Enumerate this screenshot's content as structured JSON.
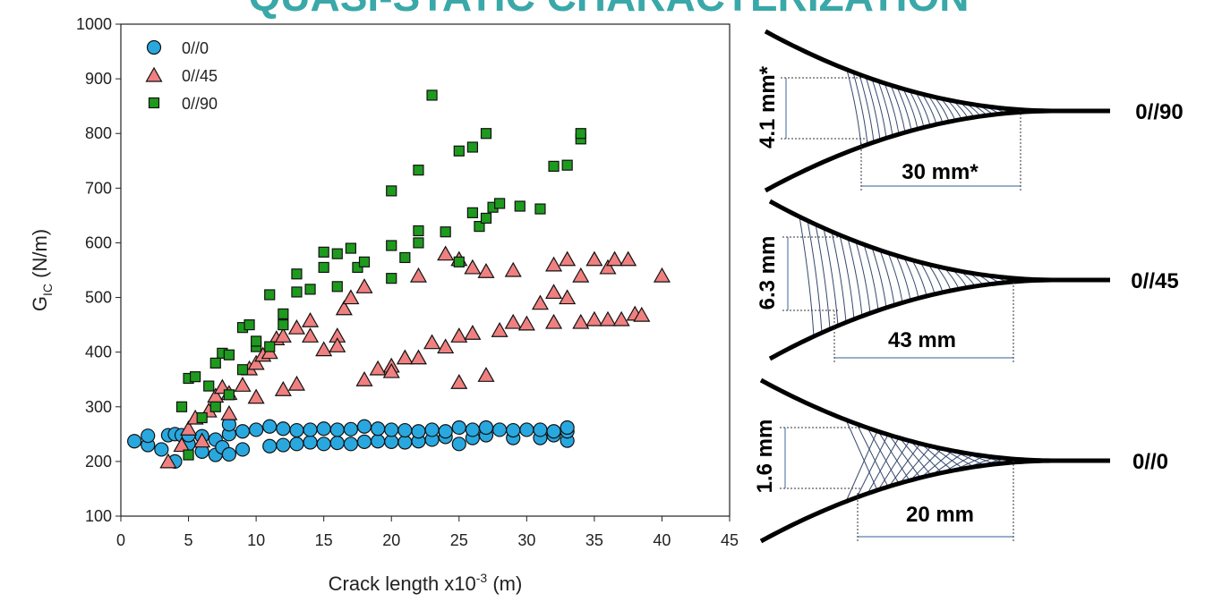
{
  "header": {
    "title": "QUASI-STATIC CHARACTERIZATION"
  },
  "chart_data": {
    "type": "scatter",
    "xlabel": [
      "Crack length x10",
      "-3",
      " (m)"
    ],
    "ylabel": [
      "G",
      "IC",
      " (N/m)"
    ],
    "xlim": [
      0,
      45
    ],
    "xticks": [
      0,
      5,
      10,
      15,
      20,
      25,
      30,
      35,
      40,
      45
    ],
    "ylim": [
      100,
      1000
    ],
    "yticks": [
      100,
      200,
      300,
      400,
      500,
      600,
      700,
      800,
      900,
      1000
    ],
    "legend": "top-left",
    "series": [
      {
        "name": "0//0",
        "color": "#29a8e0",
        "marker": "circle",
        "x": [
          1,
          2,
          2,
          3,
          3.5,
          4,
          4,
          4.5,
          5,
          5,
          6,
          6,
          7,
          7,
          7.5,
          8,
          8,
          8,
          9,
          9,
          10,
          11,
          11,
          12,
          12,
          13,
          13,
          14,
          14,
          15,
          15,
          16,
          16,
          17,
          17,
          18,
          18,
          19,
          19,
          20,
          20,
          21,
          21,
          22,
          22,
          23,
          23,
          24,
          24,
          25,
          25,
          26,
          26,
          27,
          27,
          28,
          29,
          29,
          30,
          31,
          31,
          32,
          32,
          33,
          33,
          33
        ],
        "values": [
          237,
          230,
          247,
          222,
          248,
          200,
          250,
          248,
          232,
          248,
          218,
          246,
          212,
          240,
          226,
          213,
          250,
          268,
          222,
          255,
          258,
          228,
          264,
          230,
          260,
          232,
          257,
          235,
          258,
          232,
          260,
          234,
          258,
          232,
          259,
          236,
          264,
          237,
          260,
          236,
          258,
          235,
          257,
          237,
          255,
          240,
          258,
          245,
          255,
          232,
          262,
          243,
          258,
          248,
          262,
          258,
          243,
          257,
          258,
          243,
          258,
          248,
          255,
          238,
          255,
          262
        ]
      },
      {
        "name": "0//45",
        "color": "#f08080",
        "marker": "triangle",
        "x": [
          3.5,
          4.5,
          5,
          5.5,
          6,
          6.5,
          7,
          7.5,
          8,
          8,
          9,
          9.5,
          10,
          10,
          10.5,
          11,
          11.5,
          12,
          12,
          13,
          13,
          14,
          14,
          15,
          16,
          16,
          16.5,
          17,
          18,
          18,
          19,
          20,
          20,
          21,
          22,
          22,
          23,
          24,
          24,
          25,
          25,
          25,
          26,
          26,
          27,
          27,
          29,
          28,
          29,
          30,
          31,
          32,
          32,
          32,
          33,
          33,
          34,
          34,
          35,
          35,
          36,
          36,
          36.5,
          37,
          37.5,
          38,
          38.5,
          40
        ],
        "values": [
          200,
          230,
          260,
          280,
          238,
          293,
          320,
          336,
          288,
          325,
          340,
          370,
          318,
          380,
          395,
          400,
          425,
          430,
          332,
          445,
          342,
          458,
          430,
          405,
          430,
          412,
          480,
          500,
          350,
          520,
          370,
          375,
          365,
          390,
          540,
          390,
          418,
          580,
          410,
          345,
          570,
          430,
          555,
          435,
          548,
          358,
          550,
          440,
          455,
          452,
          490,
          560,
          455,
          510,
          570,
          500,
          455,
          540,
          570,
          460,
          555,
          460,
          570,
          460,
          570,
          470,
          468,
          540
        ]
      },
      {
        "name": "0//90",
        "color": "#1e9a1e",
        "marker": "square",
        "x": [
          4.5,
          5,
          5,
          5.5,
          6,
          6.5,
          7,
          7,
          7.5,
          8,
          8,
          9,
          9,
          9.5,
          10,
          10,
          11,
          11,
          12,
          12,
          13,
          13,
          14,
          15,
          15,
          16,
          16,
          17,
          17.5,
          18,
          20,
          20,
          20,
          21,
          22,
          22,
          22,
          23,
          24,
          25,
          25,
          26,
          26,
          26.5,
          27,
          27,
          27.5,
          28,
          29.5,
          31,
          32,
          33,
          34,
          34
        ],
        "values": [
          300,
          352,
          212,
          355,
          280,
          338,
          380,
          300,
          398,
          395,
          322,
          368,
          445,
          450,
          410,
          420,
          505,
          410,
          470,
          450,
          543,
          510,
          515,
          583,
          555,
          580,
          520,
          590,
          555,
          565,
          595,
          535,
          695,
          573,
          622,
          600,
          733,
          870,
          620,
          768,
          565,
          655,
          775,
          630,
          800,
          645,
          665,
          672,
          667,
          662,
          740,
          742,
          790,
          800
        ]
      }
    ]
  },
  "diagram": {
    "panels": [
      {
        "label": "0//90",
        "height": "4.1 mm*",
        "length": "30 mm*"
      },
      {
        "label": "0//45",
        "height": "6.3 mm",
        "length": "43 mm"
      },
      {
        "label": "0//0",
        "height": "1.6 mm",
        "length": "20 mm"
      }
    ]
  }
}
